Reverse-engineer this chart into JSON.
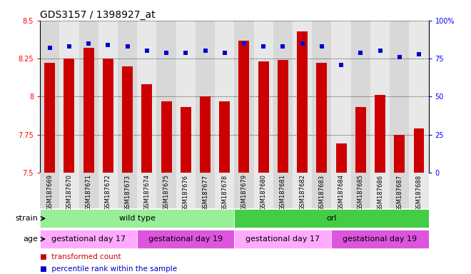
{
  "title": "GDS3157 / 1398927_at",
  "samples": [
    "GSM187669",
    "GSM187670",
    "GSM187671",
    "GSM187672",
    "GSM187673",
    "GSM187674",
    "GSM187675",
    "GSM187676",
    "GSM187677",
    "GSM187678",
    "GSM187679",
    "GSM187680",
    "GSM187681",
    "GSM187682",
    "GSM187683",
    "GSM187684",
    "GSM187685",
    "GSM187686",
    "GSM187687",
    "GSM187688"
  ],
  "bar_values": [
    8.22,
    8.25,
    8.32,
    8.25,
    8.2,
    8.08,
    7.97,
    7.93,
    8.0,
    7.97,
    8.37,
    8.23,
    8.24,
    8.43,
    8.22,
    7.69,
    7.93,
    8.01,
    7.75,
    7.79
  ],
  "percentile_values": [
    82,
    83,
    85,
    84,
    83,
    80,
    79,
    79,
    80,
    79,
    85,
    83,
    83,
    85,
    83,
    71,
    79,
    80,
    76,
    78
  ],
  "ymin": 7.5,
  "ymax": 8.5,
  "yticks": [
    7.5,
    7.75,
    8.0,
    8.25,
    8.5
  ],
  "ytick_labels": [
    "7.5",
    "7.75",
    "8",
    "8.25",
    "8.5"
  ],
  "y2min": 0,
  "y2max": 100,
  "y2ticks": [
    0,
    25,
    50,
    75,
    100
  ],
  "y2tick_labels": [
    "0",
    "25",
    "50",
    "75",
    "100%"
  ],
  "bar_color": "#cc0000",
  "dot_color": "#0000cc",
  "bar_bottom": 7.5,
  "strain_groups": [
    {
      "label": "wild type",
      "start": 0,
      "end": 10,
      "color": "#99ee99"
    },
    {
      "label": "orl",
      "start": 10,
      "end": 20,
      "color": "#44cc44"
    }
  ],
  "age_groups": [
    {
      "label": "gestational day 17",
      "start": 0,
      "end": 5,
      "color": "#ffaaff"
    },
    {
      "label": "gestational day 19",
      "start": 5,
      "end": 10,
      "color": "#dd55dd"
    },
    {
      "label": "gestational day 17",
      "start": 10,
      "end": 15,
      "color": "#ffaaff"
    },
    {
      "label": "gestational day 19",
      "start": 15,
      "end": 20,
      "color": "#dd55dd"
    }
  ],
  "legend_items": [
    {
      "label": "transformed count",
      "color": "#cc0000"
    },
    {
      "label": "percentile rank within the sample",
      "color": "#0000cc"
    }
  ],
  "plot_bg": "#f0f0f0",
  "title_fontsize": 10,
  "tick_fontsize": 7,
  "xtick_fontsize": 6,
  "annot_fontsize": 8,
  "legend_fontsize": 7.5
}
